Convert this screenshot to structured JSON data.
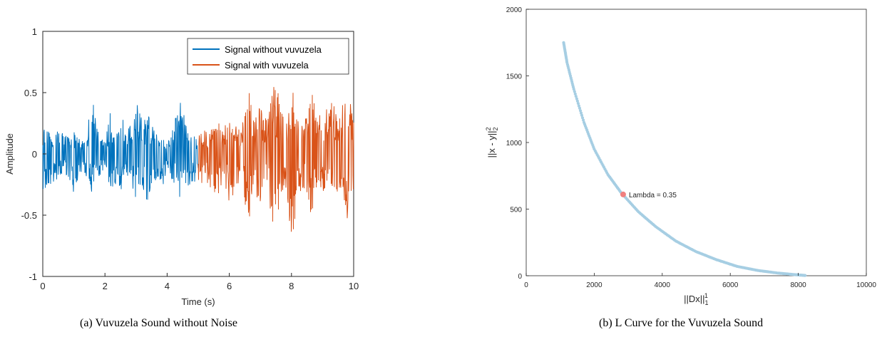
{
  "captions": {
    "a": "(a) Vuvuzela Sound without Noise",
    "b": "(b) L Curve for the Vuvuzela Sound"
  },
  "chart_data": [
    {
      "type": "line",
      "xlabel": "Time (s)",
      "ylabel": "Amplitude",
      "xlim": [
        0,
        10
      ],
      "ylim": [
        -1,
        1
      ],
      "xticks": [
        0,
        2,
        4,
        6,
        8,
        10
      ],
      "yticks": [
        -1,
        -0.5,
        0,
        0.5,
        1
      ],
      "grid": false,
      "legend_position": "top-right",
      "series": [
        {
          "name": "Signal without vuvuzela",
          "color": "#0072BD",
          "x_range": [
            0,
            5
          ],
          "envelope": [
            [
              0.0,
              0.22,
              -0.3
            ],
            [
              0.2,
              0.18,
              -0.25
            ],
            [
              0.5,
              0.2,
              -0.22
            ],
            [
              0.8,
              0.15,
              -0.18
            ],
            [
              1.0,
              0.18,
              -0.35
            ],
            [
              1.2,
              0.12,
              -0.15
            ],
            [
              1.4,
              0.15,
              -0.2
            ],
            [
              1.6,
              0.5,
              -0.38
            ],
            [
              1.8,
              0.15,
              -0.2
            ],
            [
              2.0,
              0.1,
              -0.12
            ],
            [
              2.2,
              0.38,
              -0.4
            ],
            [
              2.4,
              0.15,
              -0.2
            ],
            [
              2.6,
              0.3,
              -0.4
            ],
            [
              2.8,
              0.22,
              -0.2
            ],
            [
              3.0,
              0.45,
              -0.38
            ],
            [
              3.2,
              0.28,
              -0.28
            ],
            [
              3.4,
              0.32,
              -0.42
            ],
            [
              3.6,
              0.18,
              -0.2
            ],
            [
              3.8,
              0.22,
              -0.35
            ],
            [
              4.0,
              0.1,
              -0.1
            ],
            [
              4.2,
              0.22,
              -0.28
            ],
            [
              4.4,
              0.5,
              -0.38
            ],
            [
              4.6,
              0.25,
              -0.3
            ],
            [
              4.8,
              0.18,
              -0.25
            ],
            [
              5.0,
              0.15,
              -0.2
            ]
          ]
        },
        {
          "name": "Signal with vuvuzela",
          "color": "#D95319",
          "x_range": [
            5,
            10
          ],
          "envelope": [
            [
              5.0,
              0.18,
              -0.25
            ],
            [
              5.2,
              0.2,
              -0.25
            ],
            [
              5.4,
              0.2,
              -0.28
            ],
            [
              5.6,
              0.25,
              -0.35
            ],
            [
              5.8,
              0.28,
              -0.25
            ],
            [
              6.0,
              0.3,
              -0.4
            ],
            [
              6.2,
              0.25,
              -0.3
            ],
            [
              6.4,
              0.2,
              -0.2
            ],
            [
              6.6,
              0.62,
              -0.65
            ],
            [
              6.8,
              0.3,
              -0.3
            ],
            [
              7.0,
              0.4,
              -0.42
            ],
            [
              7.2,
              0.32,
              -0.32
            ],
            [
              7.4,
              0.58,
              -0.6
            ],
            [
              7.6,
              0.48,
              -0.45
            ],
            [
              7.8,
              0.22,
              -0.25
            ],
            [
              8.0,
              0.6,
              -0.75
            ],
            [
              8.2,
              0.35,
              -0.35
            ],
            [
              8.4,
              0.25,
              -0.28
            ],
            [
              8.6,
              0.55,
              -0.55
            ],
            [
              8.8,
              0.4,
              -0.3
            ],
            [
              9.0,
              0.3,
              -0.3
            ],
            [
              9.2,
              0.4,
              -0.4
            ],
            [
              9.4,
              0.45,
              -0.65
            ],
            [
              9.6,
              0.35,
              -0.3
            ],
            [
              9.8,
              0.58,
              -0.62
            ],
            [
              10.0,
              0.3,
              -0.3
            ]
          ]
        }
      ]
    },
    {
      "type": "scatter",
      "xlabel_text": "||Dx||",
      "xlabel_sub": "1",
      "xlabel_sup": "1",
      "ylabel_text": "||x - y||",
      "ylabel_sub": "2",
      "ylabel_sup": "2",
      "xlim": [
        0,
        10000
      ],
      "ylim": [
        0,
        2000
      ],
      "xticks": [
        0,
        2000,
        4000,
        6000,
        8000,
        10000
      ],
      "yticks": [
        0,
        500,
        1000,
        1500,
        2000
      ],
      "grid": false,
      "point_color": "#A6CEE3",
      "highlight_color": "#F08080",
      "curve": [
        [
          1100,
          1750
        ],
        [
          1200,
          1600
        ],
        [
          1400,
          1400
        ],
        [
          1700,
          1150
        ],
        [
          2000,
          950
        ],
        [
          2400,
          760
        ],
        [
          2800,
          620
        ],
        [
          3300,
          480
        ],
        [
          3800,
          370
        ],
        [
          4400,
          260
        ],
        [
          5000,
          180
        ],
        [
          5600,
          120
        ],
        [
          6200,
          70
        ],
        [
          6800,
          40
        ],
        [
          7400,
          20
        ],
        [
          7900,
          8
        ],
        [
          8200,
          2
        ]
      ],
      "highlight": {
        "x": 2850,
        "y": 610,
        "label": "Lambda = 0.35"
      }
    }
  ]
}
